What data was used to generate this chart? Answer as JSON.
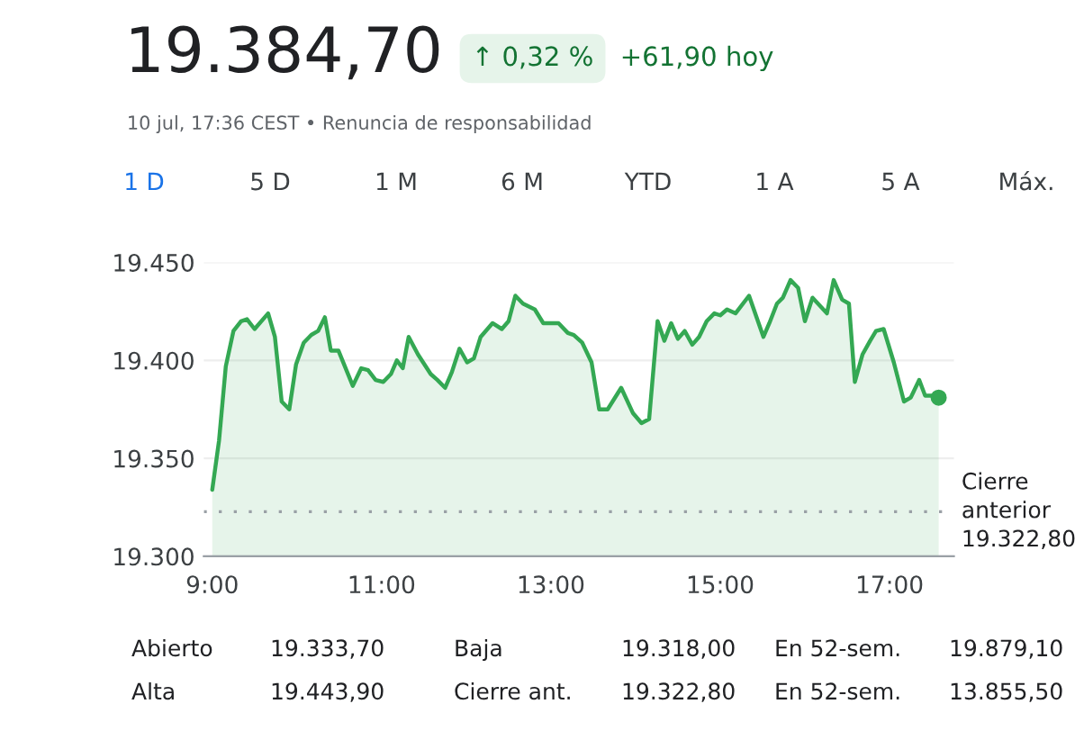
{
  "chart_data": {
    "type": "area",
    "title": "19.384,70",
    "annotations": [
      "↑ 0,32 %",
      "+61,90 hoy",
      "10 jul, 17:36 CEST • Renuncia de responsabilidad",
      "1 D",
      "5 D",
      "1 M",
      "6 M",
      "YTD",
      "1 A",
      "5 A",
      "Máx.",
      "Abierto",
      "19.333,70",
      "Baja",
      "19.318,00",
      "En 52-sem.",
      "19.879,10",
      "Alta",
      "19.443,90",
      "Cierre ant.",
      "19.322,80",
      "En 52-sem.",
      "13.855,50"
    ],
    "series": [
      {
        "color": "#34a853",
        "x": [
          9.0,
          9.08,
          9.16,
          9.25,
          9.34,
          9.41,
          9.5,
          9.66,
          9.74,
          9.82,
          9.91,
          9.99,
          10.08,
          10.17,
          10.25,
          10.33,
          10.4,
          10.49,
          10.66,
          10.76,
          10.84,
          10.93,
          11.02,
          11.11,
          11.18,
          11.25,
          11.32,
          11.43,
          11.58,
          11.66,
          11.75,
          11.83,
          11.92,
          12.01,
          12.09,
          12.17,
          12.31,
          12.42,
          12.5,
          12.58,
          12.67,
          12.81,
          12.91,
          13.09,
          13.2,
          13.27,
          13.37,
          13.48,
          13.57,
          13.67,
          13.83,
          13.97,
          14.07,
          14.16,
          14.26,
          14.34,
          14.42,
          14.5,
          14.58,
          14.67,
          14.75,
          14.84,
          14.93,
          15.0,
          15.08,
          15.18,
          15.34,
          15.51,
          15.58,
          15.67,
          15.74,
          15.83,
          15.92,
          16.0,
          16.09,
          16.26,
          16.34,
          16.44,
          16.52,
          16.59,
          16.68,
          16.77,
          16.84,
          16.93,
          17.05,
          17.17,
          17.25,
          17.35,
          17.42,
          17.51,
          17.58
        ],
        "values": [
          19334,
          19359,
          19397,
          19415,
          19420,
          19421,
          19416,
          19424,
          19412,
          19379,
          19375,
          19398,
          19409,
          19413,
          19415,
          19422,
          19405,
          19405,
          19387,
          19396,
          19395,
          19390,
          19389,
          19393,
          19400,
          19396,
          19412,
          19403,
          19393,
          19390,
          19386,
          19394,
          19406,
          19399,
          19401,
          19412,
          19419,
          19416,
          19420,
          19433,
          19429,
          19426,
          19419,
          19419,
          19414,
          19413,
          19409,
          19399,
          19375,
          19375,
          19386,
          19373,
          19368,
          19370,
          19420,
          19410,
          19419,
          19411,
          19415,
          19408,
          19412,
          19420,
          19424,
          19423,
          19426,
          19424,
          19433,
          19412,
          19419,
          19429,
          19432,
          19441,
          19437,
          19420,
          19432,
          19424,
          19441,
          19431,
          19429,
          19389,
          19403,
          19410,
          19415,
          19416,
          19399,
          19379,
          19381,
          19390,
          19382,
          19382,
          19381
        ]
      },
      {
        "type": "scatter",
        "color": "#34a853",
        "x": [
          17.58
        ],
        "values": [
          19381
        ]
      }
    ],
    "xlim": [
      8.9,
      17.76
    ],
    "ylim": [
      19300,
      19450
    ],
    "xticks": [
      {
        "value": 9,
        "label": "9:00"
      },
      {
        "value": 11,
        "label": "11:00"
      },
      {
        "value": 13,
        "label": "13:00"
      },
      {
        "value": 15,
        "label": "15:00"
      },
      {
        "value": 17,
        "label": "17:00"
      }
    ],
    "yticks": [
      {
        "value": 19300,
        "label": "19.300"
      },
      {
        "value": 19350,
        "label": "19.350"
      },
      {
        "value": 19400,
        "label": "19.400"
      },
      {
        "value": 19450,
        "label": "19.450"
      }
    ],
    "grid": "y",
    "ref_lines": [
      {
        "axis": "y",
        "value": 19322.8,
        "label": "Cierre\nanterior\n19.322,80",
        "color": "#9aa0a6",
        "line_style": "dotted"
      }
    ]
  }
}
